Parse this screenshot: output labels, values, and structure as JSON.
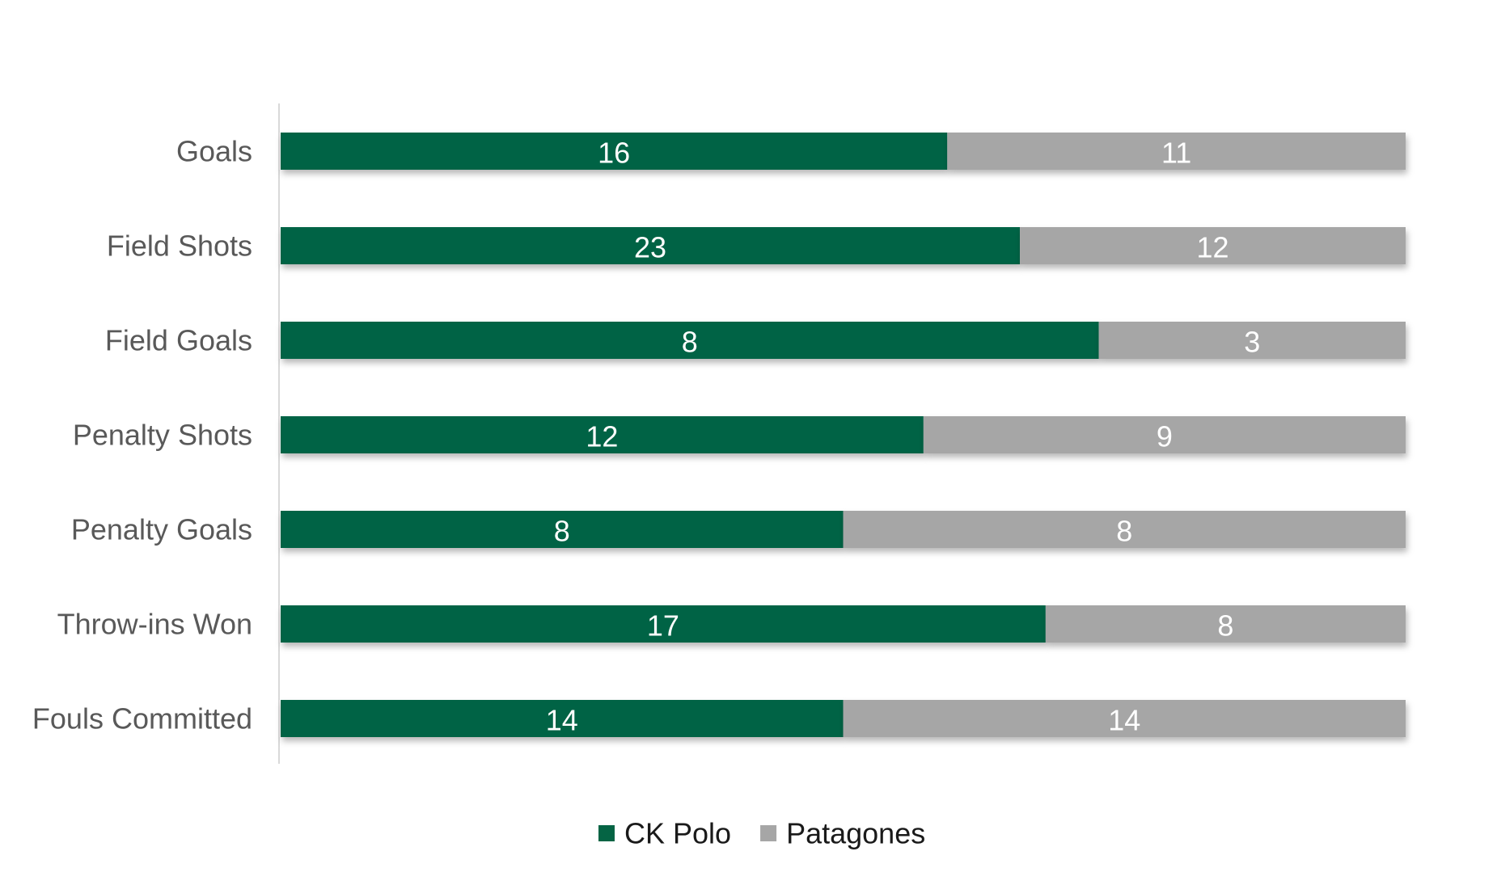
{
  "chart_data": {
    "type": "bar",
    "orientation": "horizontal",
    "stacking": "percent",
    "categories": [
      "Goals",
      "Field Shots",
      "Field Goals",
      "Penalty Shots",
      "Penalty Goals",
      "Throw-ins Won",
      "Fouls Committed"
    ],
    "series": [
      {
        "name": "CK Polo",
        "color": "#056444",
        "values": [
          16,
          23,
          8,
          12,
          8,
          17,
          14
        ]
      },
      {
        "name": "Patagones",
        "color": "#a6a6a6",
        "values": [
          11,
          12,
          3,
          9,
          8,
          8,
          14
        ]
      }
    ],
    "xlim": [
      0,
      100
    ],
    "grid": false,
    "legend": "bottom",
    "title": "",
    "xlabel": "",
    "ylabel": ""
  }
}
